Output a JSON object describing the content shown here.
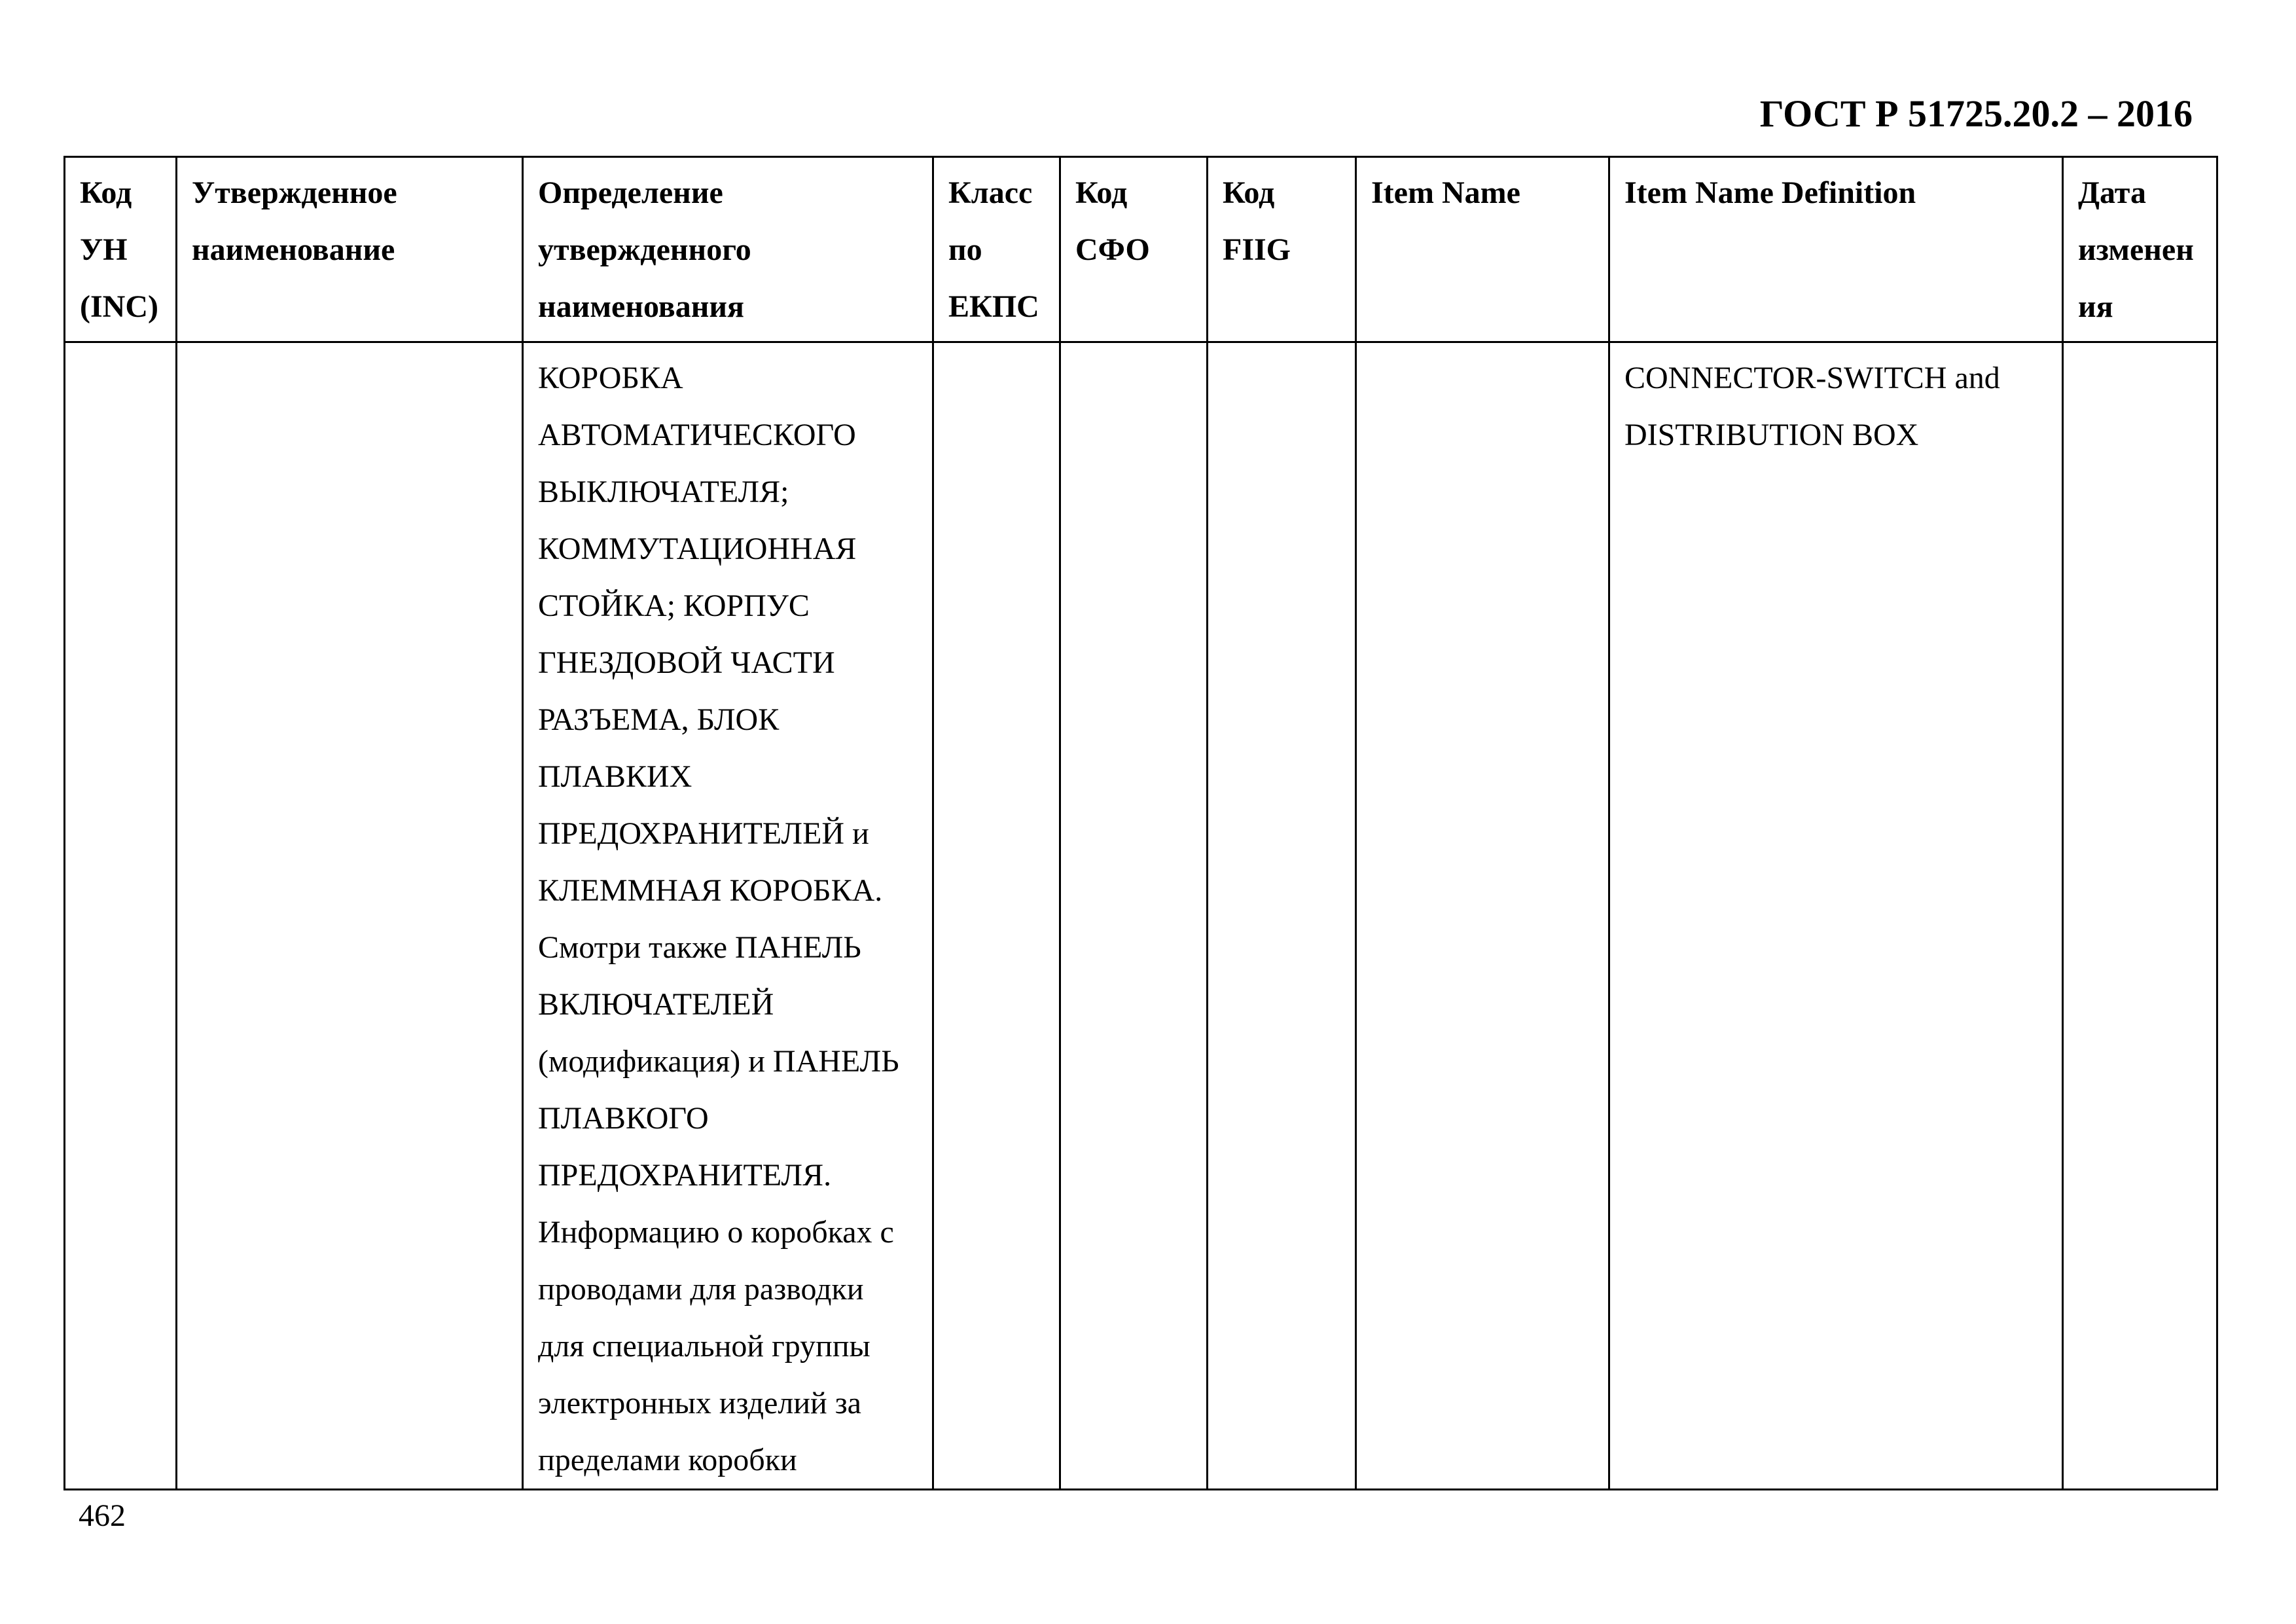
{
  "header": {
    "doc_title": "ГОСТ Р 51725.20.2 – 2016"
  },
  "table": {
    "columns": [
      [
        "Код",
        "УН",
        "(INC)"
      ],
      [
        "Утвержденное",
        "наименование"
      ],
      [
        "Определение",
        "утвержденного",
        "наименования"
      ],
      [
        "Класс",
        "по",
        "ЕКПС"
      ],
      [
        "Код",
        "СФО"
      ],
      [
        "Код",
        "FIIG"
      ],
      [
        "Item Name"
      ],
      [
        "Item Name Definition"
      ],
      [
        "Дата",
        "изменен",
        "ия"
      ]
    ],
    "row": {
      "inc": "",
      "approved_name": "",
      "definition": [
        "КОРОБКА",
        "АВТОМАТИЧЕСКОГО",
        "ВЫКЛЮЧАТЕЛЯ;",
        "КОММУТАЦИОННАЯ",
        "СТОЙКА; КОРПУС",
        "ГНЕЗДОВОЙ ЧАСТИ",
        "РАЗЪЕМА, БЛОК",
        "ПЛАВКИХ",
        "ПРЕДОХРАНИТЕЛЕЙ и",
        "КЛЕММНАЯ КОРОБКА.",
        "Смотри также ПАНЕЛЬ",
        "ВКЛЮЧАТЕЛЕЙ",
        "(модификация) и ПАНЕЛЬ",
        "ПЛАВКОГО",
        "ПРЕДОХРАНИТЕЛЯ.",
        "Информацию о коробках с",
        "проводами для разводки",
        "для специальной группы",
        "электронных изделий за",
        "пределами коробки"
      ],
      "ekps_class": "",
      "sfo_code": "",
      "fiig_code": "",
      "item_name": "",
      "item_name_definition": [
        "CONNECTOR-SWITCH and",
        "DISTRIBUTION BOX"
      ],
      "change_date": ""
    }
  },
  "footer": {
    "page_number": "462"
  }
}
